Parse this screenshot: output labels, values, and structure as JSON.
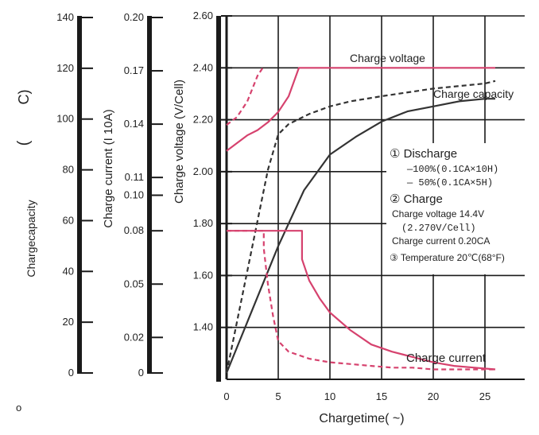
{
  "chart_data": {
    "type": "line",
    "xlabel": "Chargetime( ~)",
    "x_ticks": [
      0,
      5,
      10,
      15,
      20,
      25
    ],
    "xlim": [
      0,
      28
    ],
    "axes": {
      "voltage": {
        "label": "Charge voltage (V/Cell)",
        "ylim": [
          1.2,
          2.6
        ],
        "ticks": [
          "1.40",
          "1.60",
          "1.80",
          "2.00",
          "2.20",
          "2.40",
          "2.60"
        ],
        "tick_values": [
          1.4,
          1.6,
          1.8,
          2.0,
          2.2,
          2.4,
          2.6
        ]
      },
      "current": {
        "label": "Charge current (I 10A)",
        "ylim": [
          0,
          0.2
        ],
        "ticks": [
          "0",
          "0.02",
          "0.05",
          "0.08",
          "0.10",
          "0.11",
          "0.14",
          "0.17",
          "0.20"
        ],
        "tick_values": [
          0,
          0.02,
          0.05,
          0.08,
          0.1,
          0.11,
          0.14,
          0.17,
          0.2
        ]
      },
      "capacity": {
        "label_left": "Chargecapacity",
        "label_mid": "(",
        "label_right": "C)",
        "ylim": [
          0,
          140
        ],
        "ticks": [
          "0",
          "20",
          "40",
          "60",
          "80",
          "100",
          "120",
          "140"
        ],
        "tick_values": [
          0,
          20,
          40,
          60,
          80,
          100,
          120,
          140
        ]
      }
    },
    "series": [
      {
        "name": "Charge voltage",
        "style": "solid",
        "color": "#d6426e",
        "axis": "voltage",
        "x": [
          0,
          1,
          2,
          3,
          4,
          5,
          6,
          7,
          10,
          15,
          20,
          26
        ],
        "y": [
          2.08,
          2.11,
          2.14,
          2.16,
          2.19,
          2.23,
          2.29,
          2.4,
          2.4,
          2.4,
          2.4,
          2.4
        ]
      },
      {
        "name": "",
        "style": "dashed",
        "color": "#d6426e",
        "axis": "voltage",
        "x": [
          0,
          1,
          2,
          2.5,
          3,
          3.5
        ],
        "y": [
          2.18,
          2.21,
          2.27,
          2.32,
          2.37,
          2.4
        ]
      },
      {
        "name": "Charge capacity",
        "style": "solid",
        "color": "#333333",
        "axis": "capacity",
        "x": [
          0,
          2.5,
          5,
          7.5,
          10,
          12.5,
          15,
          17.5,
          20,
          22.5,
          25,
          26
        ],
        "y": [
          0,
          25,
          50,
          72,
          86,
          93,
          99,
          103,
          105,
          107,
          108,
          108
        ]
      },
      {
        "name": "",
        "style": "dashed",
        "color": "#333333",
        "axis": "capacity",
        "x": [
          0,
          1,
          2,
          3,
          4,
          5,
          6,
          8,
          10,
          12,
          15,
          20,
          25,
          26
        ],
        "y": [
          0,
          20,
          40,
          60,
          80,
          94,
          98,
          102,
          105,
          107,
          109,
          112,
          114,
          115
        ]
      },
      {
        "name": "Charge current",
        "style": "solid",
        "color": "#d6426e",
        "axis": "current",
        "x": [
          0,
          7.3,
          7.3,
          8,
          9,
          10,
          12,
          14,
          16,
          18,
          20,
          22,
          24,
          26
        ],
        "y": [
          0.08,
          0.08,
          0.064,
          0.052,
          0.042,
          0.034,
          0.024,
          0.016,
          0.012,
          0.009,
          0.006,
          0.004,
          0.003,
          0.002
        ]
      },
      {
        "name": "",
        "style": "dashed",
        "color": "#d6426e",
        "axis": "current",
        "x": [
          0,
          3.6,
          3.6,
          4,
          4.5,
          5,
          6,
          8,
          10,
          12,
          14,
          16,
          18,
          20,
          22,
          24,
          26
        ],
        "y": [
          0.08,
          0.08,
          0.07,
          0.05,
          0.032,
          0.018,
          0.012,
          0.008,
          0.006,
          0.005,
          0.004,
          0.003,
          0.003,
          0.002,
          0.002,
          0.002,
          0.002
        ]
      }
    ],
    "annotations": {
      "voltage_label": "Charge voltage",
      "capacity_label": "Charge capacity",
      "current_label": "Charge current",
      "legend_lines": [
        "① Discharge",
        "—100%(0.1CA×10H)",
        "— 50%(0.1CA×5H)",
        "② Charge",
        "Charge voltage 14.4V",
        "(2.270V/Cell)",
        "Charge current 0.20CA",
        "③ Temperature 20℃(68°F)"
      ]
    },
    "stray_mark": "o"
  }
}
